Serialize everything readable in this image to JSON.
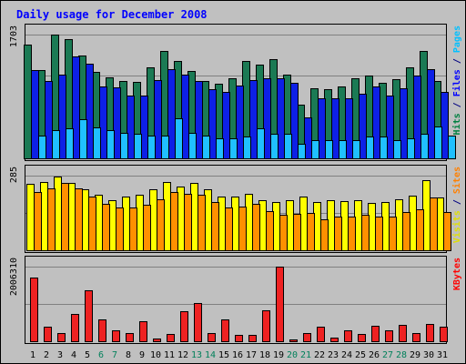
{
  "chart_data": {
    "type": "bar",
    "title": "Daily usage for December 2008",
    "categories": [
      "1",
      "2",
      "3",
      "4",
      "5",
      "6",
      "7",
      "8",
      "9",
      "10",
      "11",
      "12",
      "13",
      "14",
      "15",
      "16",
      "17",
      "18",
      "19",
      "20",
      "21",
      "22",
      "23",
      "24",
      "25",
      "26",
      "27",
      "28",
      "29",
      "30",
      "31"
    ],
    "weekend_days": [
      "6",
      "7",
      "13",
      "14",
      "20",
      "21",
      "27",
      "28"
    ],
    "panels": [
      {
        "name": "hits-files-pages",
        "y_max_label": "1703",
        "ylim": [
          0,
          1703
        ],
        "axis_labels": [
          {
            "text": "Hits",
            "color": "#008040"
          },
          {
            "text": " / ",
            "color": "#000080"
          },
          {
            "text": "Files",
            "color": "#0000ff"
          },
          {
            "text": " / ",
            "color": "#000080"
          },
          {
            "text": "Pages",
            "color": "#00c0ff"
          }
        ],
        "series": [
          {
            "name": "Hits",
            "color": "#1b7a54",
            "values": [
              1562,
              1218,
              1700,
              1637,
              1410,
              1192,
              1118,
              1060,
              1056,
              1254,
              1480,
              1342,
              1206,
              1060,
              1022,
              1096,
              1342,
              1296,
              1366,
              1152,
              740,
              966,
              954,
              986,
              1108,
              1136,
              1034,
              1088,
              1246,
              1480,
              1064
            ]
          },
          {
            "name": "Files",
            "color": "#0d20e6",
            "values": [
              1218,
              1070,
              1150,
              1400,
              1306,
              992,
              980,
              868,
              868,
              1072,
              1222,
              1146,
              1060,
              948,
              920,
              1000,
              1074,
              1104,
              1104,
              1040,
              566,
              832,
              830,
              832,
              888,
              994,
              866,
              964,
              1136,
              1232,
              920
            ]
          },
          {
            "name": "Pages",
            "color": "#20c0ff",
            "values": [
              314,
              394,
              412,
              536,
              426,
              394,
              354,
              334,
              314,
              314,
              548,
              354,
              314,
              280,
              274,
              302,
              418,
              334,
              334,
              204,
              256,
              254,
              254,
              254,
              302,
              302,
              254,
              274,
              334,
              444,
              314
            ]
          }
        ]
      },
      {
        "name": "visits-sites",
        "y_max_label": "285",
        "ylim": [
          0,
          285
        ],
        "axis_labels": [
          {
            "text": "Visits",
            "color": "#e0e000"
          },
          {
            "text": " / ",
            "color": "#000080"
          },
          {
            "text": "Sites",
            "color": "#ff8000"
          }
        ],
        "series": [
          {
            "name": "Visits",
            "color": "#ffff00",
            "values": [
              252,
              262,
              282,
              256,
              234,
              212,
              192,
              204,
              212,
              232,
              262,
              244,
              256,
              234,
              204,
              204,
              214,
              190,
              184,
              192,
              204,
              184,
              190,
              186,
              190,
              180,
              184,
              196,
              210,
              266,
              202
            ]
          },
          {
            "name": "Sites",
            "color": "#ff9000",
            "values": [
              224,
              236,
              256,
              236,
              204,
              176,
              162,
              164,
              174,
              196,
              222,
              216,
              212,
              184,
              164,
              168,
              178,
              150,
              136,
              140,
              142,
              118,
              130,
              130,
              134,
              128,
              130,
              146,
              156,
              200,
              146
            ]
          }
        ]
      },
      {
        "name": "kbytes",
        "y_max_label": "2006310",
        "ylim": [
          0,
          2006310
        ],
        "axis_labels": [
          {
            "text": "KBytes",
            "color": "#ff0000"
          }
        ],
        "series": [
          {
            "name": "KBytes",
            "color": "#ee2222",
            "values": [
              1720000,
              380000,
              230000,
              740000,
              1360000,
              580000,
              300000,
              230000,
              540000,
              80000,
              200000,
              810000,
              1030000,
              230000,
              590000,
              160000,
              170000,
              830000,
              2006310,
              40000,
              220000,
              380000,
              100000,
              300000,
              200000,
              410000,
              300000,
              450000,
              230000,
              470000,
              380000
            ]
          }
        ]
      }
    ]
  }
}
